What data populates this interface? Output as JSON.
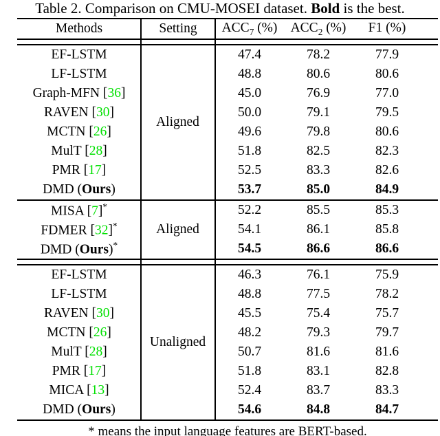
{
  "caption": {
    "prefix": "Table 2. Comparison on CMU-MOSEI dataset. ",
    "bold_word": "Bold",
    "suffix": " is the best."
  },
  "table": {
    "header": {
      "methods": "Methods",
      "setting": "Setting",
      "metrics": [
        {
          "name": "ACC",
          "subscript": "7",
          "unit": "(%)"
        },
        {
          "name": "ACC",
          "subscript": "2",
          "unit": "(%)"
        },
        {
          "name": "F1",
          "subscript": "",
          "unit": "(%)"
        }
      ]
    },
    "sections": [
      {
        "setting": "Aligned",
        "divider_after": "single",
        "rows": [
          {
            "method": "EF-LSTM",
            "cite": "",
            "star": false,
            "ours": false,
            "bold": false,
            "values": [
              "47.4",
              "78.2",
              "77.9"
            ]
          },
          {
            "method": "LF-LSTM",
            "cite": "",
            "star": false,
            "ours": false,
            "bold": false,
            "values": [
              "48.8",
              "80.6",
              "80.6"
            ]
          },
          {
            "method": "Graph-MFN",
            "cite": "36",
            "star": false,
            "ours": false,
            "bold": false,
            "values": [
              "45.0",
              "76.9",
              "77.0"
            ]
          },
          {
            "method": "RAVEN",
            "cite": "30",
            "star": false,
            "ours": false,
            "bold": false,
            "values": [
              "50.0",
              "79.1",
              "79.5"
            ]
          },
          {
            "method": "MCTN",
            "cite": "26",
            "star": false,
            "ours": false,
            "bold": false,
            "values": [
              "49.6",
              "79.8",
              "80.6"
            ]
          },
          {
            "method": "MulT",
            "cite": "28",
            "star": false,
            "ours": false,
            "bold": false,
            "values": [
              "51.8",
              "82.5",
              "82.3"
            ]
          },
          {
            "method": "PMR",
            "cite": "17",
            "star": false,
            "ours": false,
            "bold": false,
            "values": [
              "52.5",
              "83.3",
              "82.6"
            ]
          },
          {
            "method": "DMD",
            "cite": "",
            "star": false,
            "ours": true,
            "bold": true,
            "values": [
              "53.7",
              "85.0",
              "84.9"
            ]
          }
        ]
      },
      {
        "setting": "Aligned",
        "divider_after": "double",
        "rows": [
          {
            "method": "MISA",
            "cite": "7",
            "star": true,
            "ours": false,
            "bold": false,
            "values": [
              "52.2",
              "85.5",
              "85.3"
            ]
          },
          {
            "method": "FDMER",
            "cite": "32",
            "star": true,
            "ours": false,
            "bold": false,
            "values": [
              "54.1",
              "86.1",
              "85.8"
            ]
          },
          {
            "method": "DMD",
            "cite": "",
            "star": true,
            "ours": true,
            "bold": true,
            "values": [
              "54.5",
              "86.6",
              "86.6"
            ]
          }
        ]
      },
      {
        "setting": "Unaligned",
        "divider_after": "none",
        "rows": [
          {
            "method": "EF-LSTM",
            "cite": "",
            "star": false,
            "ours": false,
            "bold": false,
            "values": [
              "46.3",
              "76.1",
              "75.9"
            ]
          },
          {
            "method": "LF-LSTM",
            "cite": "",
            "star": false,
            "ours": false,
            "bold": false,
            "values": [
              "48.8",
              "77.5",
              "78.2"
            ]
          },
          {
            "method": "RAVEN",
            "cite": "30",
            "star": false,
            "ours": false,
            "bold": false,
            "values": [
              "45.5",
              "75.4",
              "75.7"
            ]
          },
          {
            "method": "MCTN",
            "cite": "26",
            "star": false,
            "ours": false,
            "bold": false,
            "values": [
              "48.2",
              "79.3",
              "79.7"
            ]
          },
          {
            "method": "MulT",
            "cite": "28",
            "star": false,
            "ours": false,
            "bold": false,
            "values": [
              "50.7",
              "81.6",
              "81.6"
            ]
          },
          {
            "method": "PMR",
            "cite": "17",
            "star": false,
            "ours": false,
            "bold": false,
            "values": [
              "51.8",
              "83.1",
              "82.8"
            ]
          },
          {
            "method": "MICA",
            "cite": "13",
            "star": false,
            "ours": false,
            "bold": false,
            "values": [
              "52.4",
              "83.7",
              "83.3"
            ]
          },
          {
            "method": "DMD",
            "cite": "",
            "star": false,
            "ours": true,
            "bold": true,
            "values": [
              "54.6",
              "84.8",
              "84.7"
            ]
          }
        ]
      }
    ],
    "ours_label": "Ours"
  },
  "footnote": "* means the input language features are BERT-based.",
  "colors": {
    "citation_green": "#00e000",
    "text": "#000000",
    "rule": "#000000"
  }
}
